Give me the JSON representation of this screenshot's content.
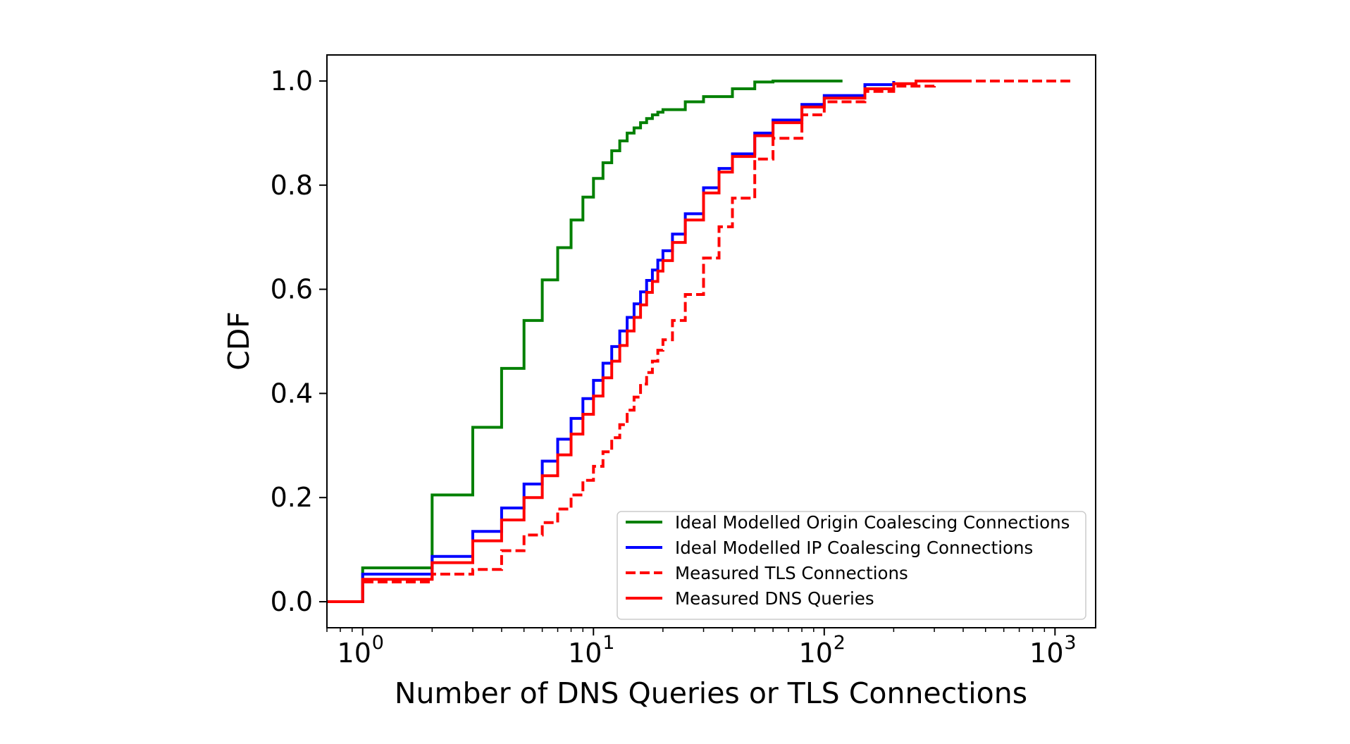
{
  "chart_data": {
    "type": "line",
    "step": true,
    "xlabel": "Number of DNS Queries or TLS Connections",
    "ylabel": "CDF",
    "xscale": "log",
    "xlim": [
      0.7,
      1500
    ],
    "ylim": [
      -0.05,
      1.05
    ],
    "xticks": [
      {
        "value": 1,
        "base": "10",
        "exp": "0"
      },
      {
        "value": 10,
        "base": "10",
        "exp": "1"
      },
      {
        "value": 100,
        "base": "10",
        "exp": "2"
      },
      {
        "value": 1000,
        "base": "10",
        "exp": "3"
      }
    ],
    "yticks": [
      "0.0",
      "0.2",
      "0.4",
      "0.6",
      "0.8",
      "1.0"
    ],
    "grid": false,
    "legend_position": "lower-right",
    "series": [
      {
        "name": "Ideal Modelled Origin Coalescing Connections",
        "color": "#008000",
        "dash": "solid",
        "x": [
          0.7,
          1,
          2,
          3,
          4,
          5,
          6,
          7,
          8,
          9,
          10,
          11,
          12,
          13,
          14,
          15,
          16,
          17,
          18,
          19,
          20,
          25,
          30,
          40,
          50,
          60,
          120
        ],
        "y": [
          0.0,
          0.065,
          0.205,
          0.335,
          0.448,
          0.54,
          0.618,
          0.68,
          0.733,
          0.777,
          0.813,
          0.843,
          0.866,
          0.885,
          0.9,
          0.91,
          0.92,
          0.928,
          0.935,
          0.94,
          0.945,
          0.96,
          0.97,
          0.985,
          0.998,
          1.0,
          1.0
        ]
      },
      {
        "name": "Ideal Modelled IP Coalescing Connections",
        "color": "#0000ff",
        "dash": "solid",
        "x": [
          0.7,
          1,
          2,
          3,
          4,
          5,
          6,
          7,
          8,
          9,
          10,
          11,
          12,
          13,
          14,
          15,
          16,
          17,
          18,
          19,
          20,
          22,
          25,
          30,
          35,
          40,
          50,
          60,
          80,
          100,
          150,
          200
        ],
        "y": [
          0.0,
          0.053,
          0.087,
          0.135,
          0.18,
          0.226,
          0.27,
          0.312,
          0.352,
          0.39,
          0.425,
          0.458,
          0.49,
          0.52,
          0.546,
          0.572,
          0.595,
          0.617,
          0.637,
          0.656,
          0.674,
          0.706,
          0.745,
          0.795,
          0.832,
          0.86,
          0.9,
          0.925,
          0.955,
          0.972,
          0.993,
          1.0
        ]
      },
      {
        "name": "Measured TLS Connections",
        "color": "#ff0000",
        "dash": "dashed",
        "x": [
          0.7,
          1,
          2,
          3,
          4,
          5,
          6,
          7,
          8,
          9,
          10,
          11,
          12,
          13,
          14,
          15,
          16,
          17,
          18,
          19,
          20,
          22,
          25,
          30,
          35,
          40,
          50,
          60,
          80,
          100,
          150,
          200,
          300,
          1200
        ],
        "y": [
          0.0,
          0.038,
          0.053,
          0.062,
          0.098,
          0.128,
          0.152,
          0.178,
          0.205,
          0.233,
          0.26,
          0.288,
          0.315,
          0.34,
          0.368,
          0.393,
          0.418,
          0.44,
          0.462,
          0.483,
          0.503,
          0.54,
          0.59,
          0.66,
          0.72,
          0.775,
          0.85,
          0.89,
          0.935,
          0.96,
          0.98,
          0.99,
          1.0,
          1.0
        ]
      },
      {
        "name": "Measured DNS Queries",
        "color": "#ff0000",
        "dash": "solid",
        "x": [
          0.7,
          1,
          2,
          3,
          4,
          5,
          6,
          7,
          8,
          9,
          10,
          11,
          12,
          13,
          14,
          15,
          16,
          17,
          18,
          19,
          20,
          22,
          25,
          30,
          35,
          40,
          50,
          60,
          80,
          100,
          150,
          200,
          250,
          400
        ],
        "y": [
          0.0,
          0.043,
          0.075,
          0.117,
          0.157,
          0.2,
          0.242,
          0.282,
          0.322,
          0.36,
          0.395,
          0.43,
          0.462,
          0.492,
          0.52,
          0.546,
          0.57,
          0.594,
          0.615,
          0.635,
          0.655,
          0.69,
          0.733,
          0.785,
          0.825,
          0.855,
          0.895,
          0.92,
          0.95,
          0.967,
          0.985,
          0.995,
          1.0,
          1.0
        ]
      }
    ]
  }
}
